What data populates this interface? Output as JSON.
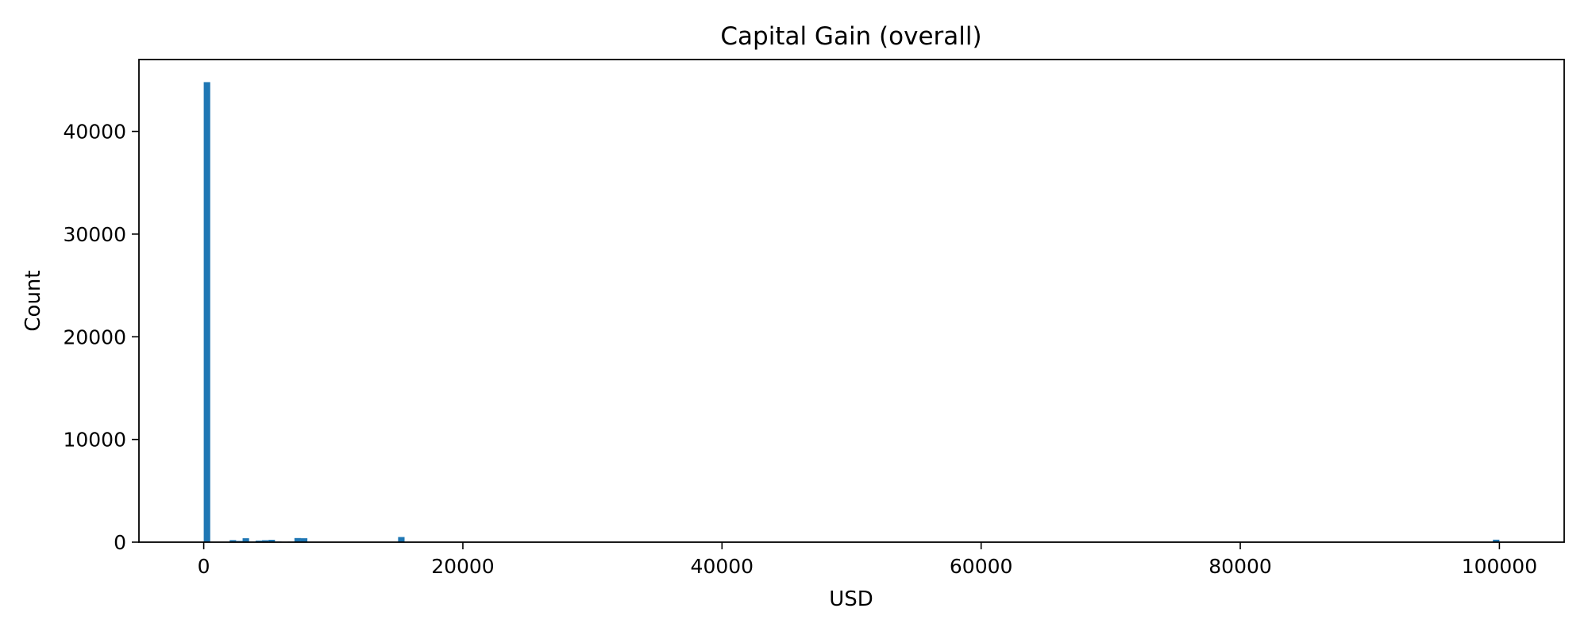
{
  "chart_data": {
    "type": "bar",
    "title": "Capital Gain (overall)",
    "xlabel": "USD",
    "ylabel": "Count",
    "xlim": [
      -5000,
      105000
    ],
    "ylim": [
      0,
      47000
    ],
    "x_ticks": [
      0,
      20000,
      40000,
      60000,
      80000,
      100000
    ],
    "x_tick_labels": [
      "0",
      "20000",
      "40000",
      "60000",
      "80000",
      "100000"
    ],
    "y_ticks": [
      0,
      10000,
      20000,
      30000,
      40000
    ],
    "y_tick_labels": [
      "0",
      "10000",
      "20000",
      "30000",
      "40000"
    ],
    "grid": false,
    "legend": "none",
    "bar_color": "#1f77b4",
    "bin_width": 500,
    "bins": [
      {
        "x0": 0,
        "x1": 500,
        "count": 44800
      },
      {
        "x0": 2000,
        "x1": 2500,
        "count": 200
      },
      {
        "x0": 2500,
        "x1": 3000,
        "count": 120
      },
      {
        "x0": 3000,
        "x1": 3500,
        "count": 380
      },
      {
        "x0": 3500,
        "x1": 4000,
        "count": 60
      },
      {
        "x0": 4000,
        "x1": 4500,
        "count": 150
      },
      {
        "x0": 4500,
        "x1": 5000,
        "count": 190
      },
      {
        "x0": 5000,
        "x1": 5500,
        "count": 230
      },
      {
        "x0": 5500,
        "x1": 6000,
        "count": 60
      },
      {
        "x0": 6500,
        "x1": 7000,
        "count": 50
      },
      {
        "x0": 7000,
        "x1": 7500,
        "count": 400
      },
      {
        "x0": 7500,
        "x1": 8000,
        "count": 380
      },
      {
        "x0": 10500,
        "x1": 11000,
        "count": 30
      },
      {
        "x0": 13500,
        "x1": 14000,
        "count": 30
      },
      {
        "x0": 14500,
        "x1": 15000,
        "count": 30
      },
      {
        "x0": 15000,
        "x1": 15500,
        "count": 500
      },
      {
        "x0": 99500,
        "x1": 100000,
        "count": 240
      }
    ]
  }
}
